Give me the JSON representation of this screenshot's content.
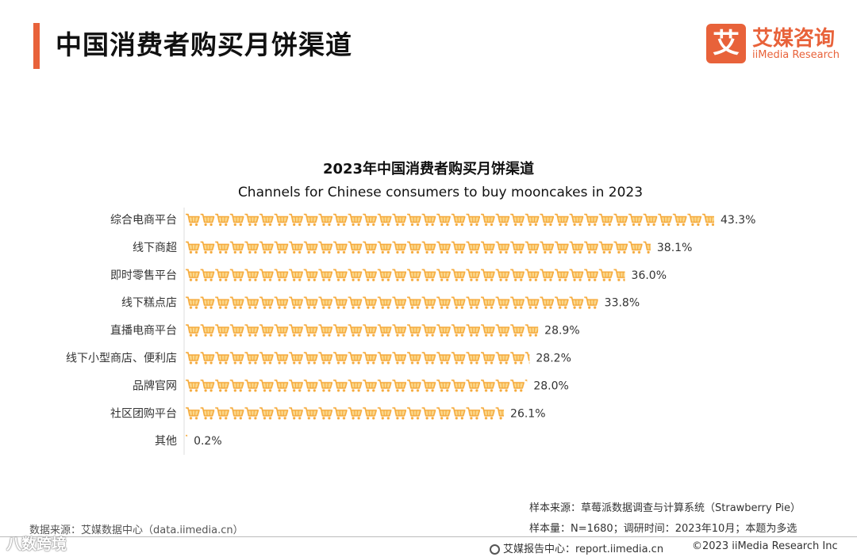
{
  "page": {
    "title": "中国消费者购买月饼渠道"
  },
  "logo": {
    "mark": "艾",
    "cn": "艾媒咨询",
    "en": "iiMedia Research"
  },
  "colors": {
    "accent": "#E8623A",
    "bar": "#F5A93A",
    "bar_light": "#FBD88C",
    "text": "#333333"
  },
  "chart_data": {
    "type": "bar",
    "orientation": "horizontal",
    "title": "2023年中国消费者购买月饼渠道",
    "subtitle": "Channels for Chinese consumers to buy mooncakes in 2023",
    "mark_icon": "shopping-cart-icon",
    "categories": [
      "综合电商平台",
      "线下商超",
      "即时零售平台",
      "线下糕点店",
      "直播电商平台",
      "线下小型商店、便利店",
      "品牌官网",
      "社区团购平台",
      "其他"
    ],
    "values": [
      43.3,
      38.1,
      36.0,
      33.8,
      28.9,
      28.2,
      28.0,
      26.1,
      0.2
    ],
    "value_labels": [
      "43.3%",
      "38.1%",
      "36.0%",
      "33.8%",
      "28.9%",
      "28.2%",
      "28.0%",
      "26.1%",
      "0.2%"
    ],
    "unit": "%",
    "xlim": [
      0,
      45
    ]
  },
  "footer": {
    "source": "数据来源：艾媒数据中心（data.iimedia.cn）",
    "sample_source": "样本来源：草莓派数据调查与计算系统（Strawberry Pie）",
    "sample_info": "样本量：N=1680；调研时间：2023年10月；本题为多选",
    "report": "艾媒报告中心：report.iimedia.cn",
    "copyright": "©2023  iiMedia Research  Inc"
  },
  "watermark": "八数跨境"
}
